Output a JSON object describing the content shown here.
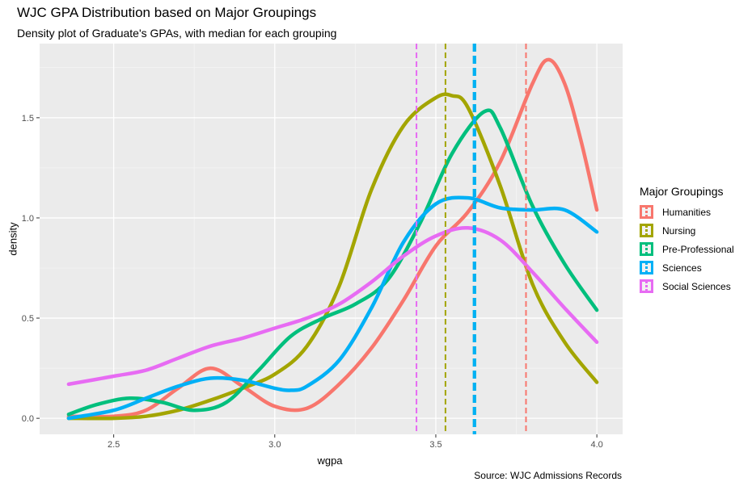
{
  "title": "WJC GPA Distribution based on Major Groupings",
  "subtitle": "Density plot of Graduate's GPAs, with median for each grouping",
  "caption": "Source: WJC Admissions Records",
  "chart_data": {
    "type": "line",
    "title": "WJC GPA Distribution based on Major Groupings",
    "subtitle": "Density plot of Graduate's GPAs, with median for each grouping",
    "xlabel": "wgpa",
    "ylabel": "density",
    "xlim": [
      2.27,
      4.08
    ],
    "ylim": [
      -0.08,
      1.87
    ],
    "x_ticks": [
      2.5,
      3.0,
      3.5,
      4.0
    ],
    "x_tick_labels": [
      "2.5",
      "3.0",
      "3.5",
      "4.0"
    ],
    "y_ticks": [
      0.0,
      0.5,
      1.0,
      1.5
    ],
    "y_tick_labels": [
      "0.0",
      "0.5",
      "1.0",
      "1.5"
    ],
    "grid": true,
    "legend_title": "Major Groupings",
    "legend_position": "right",
    "series": [
      {
        "name": "Humanities",
        "color": "#F8766D",
        "median": 3.78,
        "x": [
          2.36,
          2.5,
          2.6,
          2.7,
          2.8,
          2.9,
          3.0,
          3.1,
          3.2,
          3.3,
          3.4,
          3.5,
          3.6,
          3.7,
          3.8,
          3.85,
          3.9,
          3.95,
          4.0
        ],
        "y": [
          0.01,
          0.01,
          0.04,
          0.15,
          0.25,
          0.16,
          0.06,
          0.05,
          0.17,
          0.35,
          0.59,
          0.86,
          1.03,
          1.28,
          1.67,
          1.79,
          1.67,
          1.39,
          1.04
        ]
      },
      {
        "name": "Nursing",
        "color": "#A3A500",
        "median": 3.53,
        "x": [
          2.36,
          2.5,
          2.6,
          2.7,
          2.8,
          2.9,
          3.0,
          3.1,
          3.2,
          3.3,
          3.4,
          3.5,
          3.55,
          3.6,
          3.7,
          3.8,
          3.9,
          4.0
        ],
        "y": [
          0.0,
          0.0,
          0.01,
          0.04,
          0.09,
          0.15,
          0.22,
          0.36,
          0.66,
          1.14,
          1.46,
          1.6,
          1.61,
          1.55,
          1.16,
          0.67,
          0.38,
          0.18
        ]
      },
      {
        "name": "Pre-Professional",
        "color": "#00BF7D",
        "median": 3.62,
        "x": [
          2.36,
          2.45,
          2.55,
          2.65,
          2.75,
          2.85,
          2.95,
          3.05,
          3.15,
          3.25,
          3.35,
          3.45,
          3.55,
          3.65,
          3.7,
          3.8,
          3.9,
          4.0
        ],
        "y": [
          0.02,
          0.07,
          0.1,
          0.08,
          0.04,
          0.08,
          0.24,
          0.41,
          0.5,
          0.57,
          0.69,
          0.97,
          1.32,
          1.53,
          1.45,
          1.06,
          0.77,
          0.54
        ]
      },
      {
        "name": "Sciences",
        "color": "#00B0F6",
        "median": 3.62,
        "x": [
          2.36,
          2.5,
          2.6,
          2.7,
          2.8,
          2.9,
          3.0,
          3.05,
          3.1,
          3.2,
          3.3,
          3.4,
          3.5,
          3.6,
          3.7,
          3.8,
          3.9,
          4.0
        ],
        "y": [
          0.0,
          0.04,
          0.1,
          0.16,
          0.2,
          0.19,
          0.15,
          0.14,
          0.16,
          0.29,
          0.55,
          0.88,
          1.07,
          1.1,
          1.05,
          1.04,
          1.04,
          0.93
        ]
      },
      {
        "name": "Social Sciences",
        "color": "#E76BF3",
        "median": 3.44,
        "x": [
          2.36,
          2.5,
          2.6,
          2.7,
          2.8,
          2.9,
          3.0,
          3.1,
          3.2,
          3.3,
          3.4,
          3.5,
          3.6,
          3.7,
          3.8,
          3.9,
          4.0
        ],
        "y": [
          0.17,
          0.21,
          0.24,
          0.3,
          0.36,
          0.4,
          0.45,
          0.5,
          0.57,
          0.68,
          0.81,
          0.91,
          0.95,
          0.89,
          0.73,
          0.55,
          0.38
        ]
      }
    ]
  }
}
